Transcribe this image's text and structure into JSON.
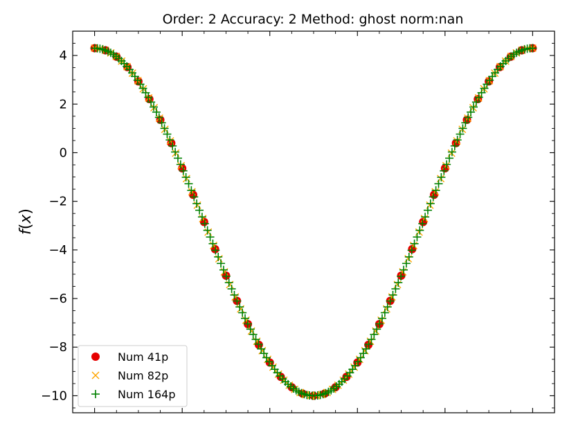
{
  "chart_data": {
    "type": "scatter",
    "title": "Order: 2 Accuracy: 2 Method: ghost norm:nan",
    "xlabel": "",
    "ylabel": "f(x)",
    "xlim": [
      -0.05,
      1.05
    ],
    "ylim": [
      -10.7,
      5.0
    ],
    "x_ticks_minor": true,
    "x_tick_labels_shown": false,
    "y_ticks": [
      4,
      2,
      0,
      -2,
      -4,
      -6,
      -8,
      -10
    ],
    "y_tick_labels": [
      "4",
      "2",
      "0",
      "−2",
      "−4",
      "−6",
      "−8",
      "−10"
    ],
    "grid": false,
    "legend_placement": "lower-left",
    "function_shape": {
      "center": 4.3,
      "amplitude": -14.3,
      "form": "cos^2(pi*x)"
    },
    "series": [
      {
        "name": "Num 41p",
        "marker": "circle",
        "color": "#e60000",
        "points": 41
      },
      {
        "name": "Num 82p",
        "marker": "x",
        "color": "#ffa500",
        "points": 82
      },
      {
        "name": "Num 164p",
        "marker": "plus",
        "color": "#008000",
        "points": 164
      }
    ]
  }
}
